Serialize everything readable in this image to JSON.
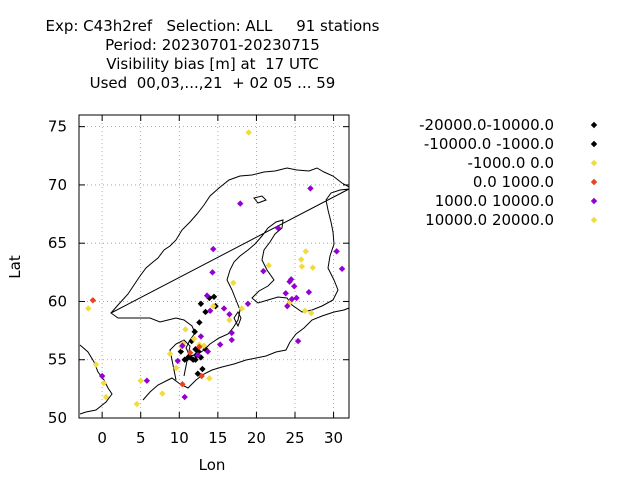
{
  "chart_data": {
    "type": "scatter",
    "title_lines": [
      "Exp: C43h2ref   Selection: ALL     91 stations",
      "Period: 20230701-20230715",
      "Visibility bias [m] at  17 UTC",
      "Used  00,03,...,21  + 02 05 ... 59"
    ],
    "xlabel": "Lon",
    "ylabel": "Lat",
    "xlim": [
      -3,
      32
    ],
    "ylim": [
      50,
      76
    ],
    "xticks": [
      0,
      5,
      10,
      15,
      20,
      25,
      30
    ],
    "yticks": [
      50,
      55,
      60,
      65,
      70,
      75
    ],
    "grid": true,
    "legend_position": "right",
    "series": [
      {
        "name": "-20000.0-10000.0",
        "color": "#000000",
        "points": []
      },
      {
        "name": "-10000.0 -1000.0",
        "color": "#000000",
        "points": [
          [
            12.8,
            59.8
          ],
          [
            13.9,
            60.3
          ],
          [
            14.5,
            60.4
          ],
          [
            14.7,
            59.6
          ],
          [
            13.4,
            59.1
          ],
          [
            12.6,
            58.2
          ],
          [
            12.0,
            57.4
          ],
          [
            11.6,
            56.6
          ],
          [
            12.1,
            55.9
          ],
          [
            12.5,
            55.7
          ],
          [
            12.2,
            55.4
          ],
          [
            11.3,
            55.3
          ],
          [
            10.2,
            55.7
          ],
          [
            11.0,
            55.1
          ],
          [
            12.1,
            55.0
          ],
          [
            13.0,
            54.2
          ],
          [
            13.4,
            55.9
          ],
          [
            12.8,
            55.2
          ],
          [
            11.8,
            55.0
          ],
          [
            11.4,
            55.2
          ],
          [
            10.7,
            55.0
          ],
          [
            12.4,
            53.8
          ]
        ]
      },
      {
        "name": "-1000.0 0.0",
        "color": "#f0dc3c",
        "points": [
          [
            19.0,
            74.5
          ],
          [
            -1.8,
            59.4
          ],
          [
            -0.8,
            54.6
          ],
          [
            0.2,
            53.0
          ],
          [
            0.5,
            51.8
          ],
          [
            4.5,
            51.2
          ],
          [
            5.0,
            53.2
          ],
          [
            7.8,
            52.1
          ],
          [
            8.8,
            55.5
          ],
          [
            9.6,
            54.3
          ],
          [
            10.3,
            56.1
          ],
          [
            10.8,
            57.6
          ],
          [
            11.9,
            56.8
          ],
          [
            13.2,
            56.2
          ],
          [
            13.9,
            53.4
          ],
          [
            16.5,
            58.4
          ],
          [
            17.0,
            61.6
          ],
          [
            18.1,
            59.4
          ],
          [
            21.6,
            63.1
          ],
          [
            24.3,
            59.9
          ],
          [
            25.8,
            63.6
          ],
          [
            25.9,
            63.0
          ],
          [
            26.4,
            64.3
          ],
          [
            27.3,
            62.9
          ],
          [
            26.3,
            59.2
          ],
          [
            27.1,
            59.0
          ],
          [
            14.4,
            59.6
          ],
          [
            12.6,
            56.3
          ],
          [
            10.5,
            56.4
          ]
        ]
      },
      {
        "name": "0.0 1000.0",
        "color": "#e8431f",
        "points": [
          [
            -1.2,
            60.1
          ],
          [
            10.4,
            52.9
          ],
          [
            12.9,
            53.6
          ],
          [
            11.4,
            55.6
          ],
          [
            12.6,
            56.1
          ]
        ]
      },
      {
        "name": "1000.0 10000.0",
        "color": "#9400d3",
        "points": [
          [
            27.0,
            69.7
          ],
          [
            17.9,
            68.4
          ],
          [
            22.8,
            66.3
          ],
          [
            14.4,
            64.5
          ],
          [
            14.3,
            62.5
          ],
          [
            13.6,
            60.5
          ],
          [
            15.8,
            59.4
          ],
          [
            16.5,
            58.9
          ],
          [
            15.3,
            56.3
          ],
          [
            16.8,
            57.3
          ],
          [
            18.9,
            59.8
          ],
          [
            24.3,
            61.7
          ],
          [
            24.9,
            61.3
          ],
          [
            24.5,
            61.9
          ],
          [
            23.8,
            60.7
          ],
          [
            24.0,
            59.6
          ],
          [
            25.2,
            60.3
          ],
          [
            25.4,
            56.6
          ],
          [
            30.4,
            64.3
          ],
          [
            31.1,
            62.8
          ],
          [
            0.0,
            53.6
          ],
          [
            10.7,
            51.8
          ],
          [
            5.8,
            53.2
          ],
          [
            10.4,
            56.2
          ],
          [
            12.8,
            57.0
          ],
          [
            14.0,
            59.2
          ],
          [
            12.4,
            55.4
          ],
          [
            13.7,
            55.7
          ],
          [
            16.8,
            56.7
          ],
          [
            20.9,
            62.6
          ],
          [
            24.6,
            60.2
          ],
          [
            26.8,
            60.8
          ],
          [
            9.8,
            54.9
          ]
        ]
      },
      {
        "name": "10000.0 20000.0",
        "color": "#f0dc3c",
        "points": []
      }
    ]
  }
}
